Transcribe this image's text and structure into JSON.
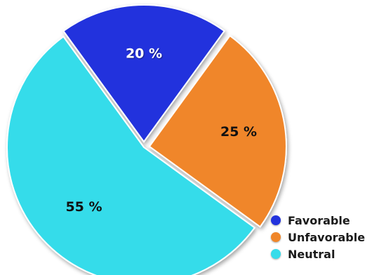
{
  "chart_data": {
    "type": "pie",
    "title": "",
    "categories": [
      "Favorable",
      "Unfavorable",
      "Neutral"
    ],
    "values": [
      20,
      25,
      55
    ],
    "labels": [
      "20 %",
      "25 %",
      "55 %"
    ],
    "colors": [
      "#2233dd",
      "#f0862a",
      "#36dcea"
    ],
    "label_colors": [
      "#ffffff",
      "#111111",
      "#111111"
    ],
    "legend_position": "bottom-right"
  },
  "legend": {
    "items": [
      {
        "label": "Favorable",
        "color": "#2233dd"
      },
      {
        "label": "Unfavorable",
        "color": "#f0862a"
      },
      {
        "label": "Neutral",
        "color": "#36dcea"
      }
    ]
  }
}
